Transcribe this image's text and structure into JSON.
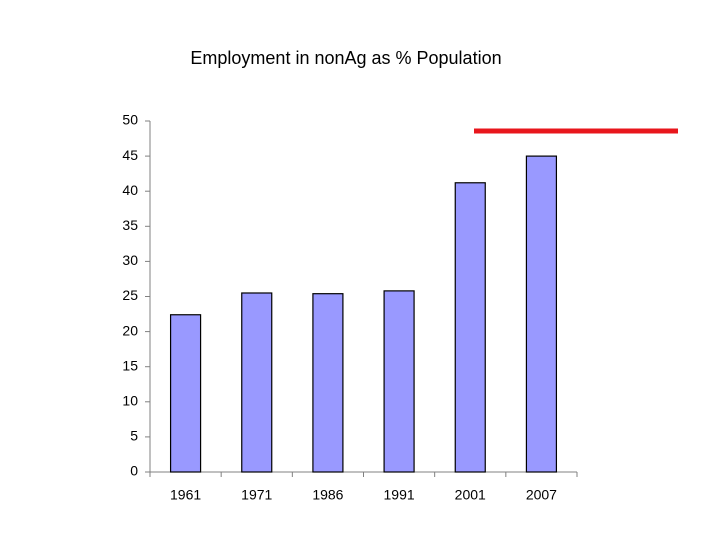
{
  "chart_data": {
    "type": "bar",
    "title": "Employment in nonAg as % Population",
    "categories": [
      "1961",
      "1971",
      "1986",
      "1991",
      "2001",
      "2007"
    ],
    "values": [
      22.4,
      25.5,
      25.4,
      25.8,
      41.2,
      45.0
    ],
    "color": "#9999ff",
    "ylim": [
      0,
      50
    ],
    "yticks": [
      0,
      5,
      10,
      15,
      20,
      25,
      30,
      35,
      40,
      45,
      50
    ],
    "grid": false
  }
}
